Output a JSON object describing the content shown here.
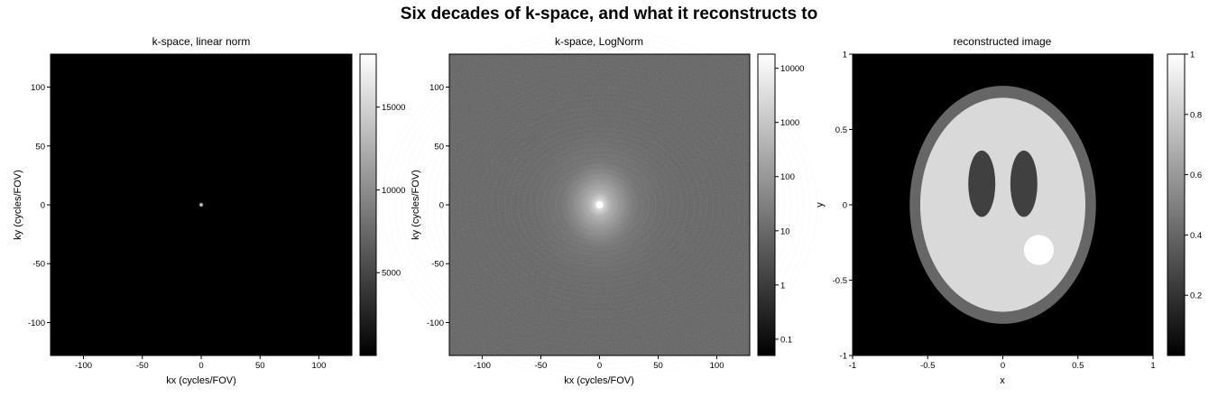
{
  "figure": {
    "suptitle": "Six decades of k-space, and what it reconstructs to"
  },
  "chart_data": [
    {
      "type": "heatmap",
      "title": "k-space, linear norm",
      "xlabel": "kx (cycles/FOV)",
      "ylabel": "ky (cycles/FOV)",
      "xlim": [
        -128,
        128
      ],
      "ylim": [
        -128,
        128
      ],
      "xticks": [
        -100,
        -50,
        0,
        50,
        100
      ],
      "yticks": [
        100,
        50,
        0,
        -50,
        -100
      ],
      "colormap": "gray",
      "colorbar": {
        "scale": "linear",
        "range": [
          0,
          18200
        ],
        "ticks": [
          5000,
          10000,
          15000
        ]
      },
      "peak": {
        "kx": 0,
        "ky": 0,
        "value": 18200
      }
    },
    {
      "type": "heatmap",
      "title": "k-space, LogNorm",
      "xlabel": "kx (cycles/FOV)",
      "ylabel": "ky (cycles/FOV)",
      "xlim": [
        -128,
        128
      ],
      "ylim": [
        -128,
        128
      ],
      "xticks": [
        -100,
        -50,
        0,
        50,
        100
      ],
      "yticks": [
        100,
        50,
        0,
        -50,
        -100
      ],
      "colormap": "gray",
      "colorbar": {
        "scale": "log",
        "range": [
          0.05,
          18200
        ],
        "ticks": [
          0.1,
          1,
          10,
          100,
          1000,
          10000
        ],
        "tick_labels": [
          "0.1",
          "1",
          "10",
          "100",
          "1000",
          "10000"
        ]
      }
    },
    {
      "type": "heatmap",
      "title": "reconstructed image",
      "xlabel": "x",
      "ylabel": "y",
      "xlim": [
        -1,
        1
      ],
      "ylim": [
        -1,
        1
      ],
      "xticks": [
        -1,
        -0.5,
        0,
        0.5,
        1
      ],
      "yticks": [
        1,
        0.5,
        0,
        -0.5,
        -1
      ],
      "colormap": "gray",
      "colorbar": {
        "scale": "linear",
        "range": [
          0,
          1
        ],
        "ticks": [
          0.2,
          0.4,
          0.6,
          0.8,
          1
        ]
      },
      "phantom": [
        {
          "shape": "ellipse",
          "cx": 0,
          "cy": 0,
          "rx": 0.62,
          "ry": 0.79,
          "intensity": 0.4
        },
        {
          "shape": "ellipse",
          "cx": 0,
          "cy": 0,
          "rx": 0.55,
          "ry": 0.71,
          "intensity": 0.85
        },
        {
          "shape": "ellipse",
          "cx": -0.14,
          "cy": 0.14,
          "rx": 0.09,
          "ry": 0.22,
          "intensity": 0.25
        },
        {
          "shape": "ellipse",
          "cx": 0.14,
          "cy": 0.14,
          "rx": 0.09,
          "ry": 0.22,
          "intensity": 0.25
        },
        {
          "shape": "ellipse",
          "cx": 0.24,
          "cy": -0.3,
          "rx": 0.1,
          "ry": 0.1,
          "intensity": 1.0
        }
      ]
    }
  ]
}
